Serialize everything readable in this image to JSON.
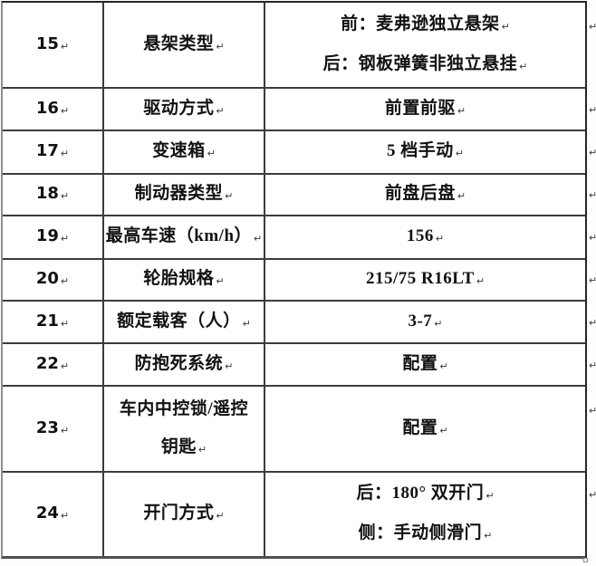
{
  "table": {
    "paragraph_mark": "↵",
    "rows": [
      {
        "num": "15",
        "label_lines": [
          "悬架类型"
        ],
        "value_lines": [
          "前：麦弗逊独立悬架",
          "后：钢板弹簧非独立悬挂"
        ]
      },
      {
        "num": "16",
        "label_lines": [
          "驱动方式"
        ],
        "value_lines": [
          "前置前驱"
        ]
      },
      {
        "num": "17",
        "label_lines": [
          "变速箱"
        ],
        "value_lines": [
          "5 档手动"
        ]
      },
      {
        "num": "18",
        "label_lines": [
          "制动器类型"
        ],
        "value_lines": [
          "前盘后盘"
        ]
      },
      {
        "num": "19",
        "label_lines": [
          "最高车速（km/h）"
        ],
        "value_lines": [
          "156"
        ]
      },
      {
        "num": "20",
        "label_lines": [
          "轮胎规格"
        ],
        "value_lines": [
          "215/75 R16LT"
        ]
      },
      {
        "num": "21",
        "label_lines": [
          "额定载客（人）"
        ],
        "value_lines": [
          "3-7"
        ]
      },
      {
        "num": "22",
        "label_lines": [
          "防抱死系统"
        ],
        "value_lines": [
          "配置"
        ]
      },
      {
        "num": "23",
        "label_lines": [
          "车内中控锁/遥控",
          "钥匙"
        ],
        "value_lines": [
          "配置"
        ]
      },
      {
        "num": "24",
        "label_lines": [
          "开门方式"
        ],
        "value_lines": [
          "后：180° 双开门",
          "侧：手动侧滑门"
        ]
      }
    ]
  },
  "colors": {
    "outer_border": "#262626",
    "grid_line": "#3c3c3c",
    "left_border_gray": "#8f8f8f",
    "text": "#111111"
  }
}
